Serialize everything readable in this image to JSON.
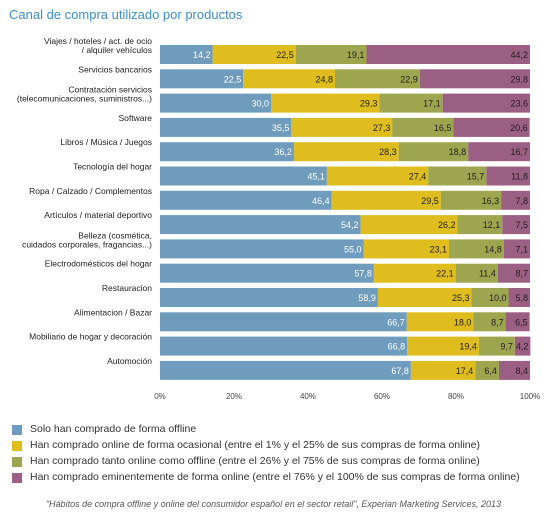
{
  "chart_data": {
    "type": "bar",
    "orientation": "horizontal",
    "stacked": true,
    "title": "Canal de compra utilizado por productos",
    "categories": [
      [
        "Viajes / hoteles / act. de ocio",
        "/ alquiler vehículos"
      ],
      [
        "Servicios bancarios"
      ],
      [
        "Contratación servicios",
        "(telecomunicaciones, suministros...)"
      ],
      [
        "Software"
      ],
      [
        "Libros / Música / Juegos"
      ],
      [
        "Tecnología del hogar"
      ],
      [
        "Ropa / Calzado / Complementos"
      ],
      [
        "Artículos / material deportivo"
      ],
      [
        "Belleza (cosmética,",
        "cuidados corporales, fragancias...)"
      ],
      [
        "Electrodomésticos del hogar"
      ],
      [
        "Restauracion"
      ],
      [
        "Alimentacion / Bazar"
      ],
      [
        "Mobiliario de hogar y decoración"
      ],
      [
        "Automoción"
      ]
    ],
    "series": [
      {
        "name": "Solo han comprado de forma offline",
        "color": "#6f9cbc",
        "values": [
          14.2,
          22.5,
          30.0,
          35.5,
          36.2,
          45.1,
          46.4,
          54.2,
          55.0,
          57.8,
          58.9,
          66.7,
          66.8,
          67.8
        ]
      },
      {
        "name": "Han comprado online de forma ocasional (entre el 1% y el 25% de sus compras de forma online)",
        "color": "#e0bd1f",
        "values": [
          22.5,
          24.8,
          29.3,
          27.3,
          28.3,
          27.4,
          29.5,
          26.2,
          23.1,
          22.1,
          25.3,
          18.0,
          19.4,
          17.4
        ]
      },
      {
        "name": "Han comprado tanto online como offline (entre el 26% y el 75% de sus compras de forma online)",
        "color": "#9da64e",
        "values": [
          19.1,
          22.9,
          17.1,
          16.5,
          18.8,
          15.7,
          16.3,
          12.1,
          14.8,
          11.4,
          10.0,
          8.7,
          9.7,
          6.4
        ]
      },
      {
        "name": "Han comprado eminentemente de forma online (entre el 76% y el 100% de sus compras de forma online)",
        "color": "#9b5f83",
        "values": [
          44.2,
          29.8,
          23.6,
          20.6,
          16.7,
          11.8,
          7.8,
          7.5,
          7.1,
          8.7,
          5.8,
          6.5,
          4.2,
          8.4
        ]
      }
    ],
    "xlim": [
      0,
      100
    ],
    "xticks": [
      "0%",
      "20%",
      "40%",
      "60%",
      "80%",
      "100%"
    ],
    "legend_position": "bottom",
    "source": "\"Hábitos de compra offline y online del consumidor español en el sector retail\", Experian Marketing Services, 2013"
  }
}
